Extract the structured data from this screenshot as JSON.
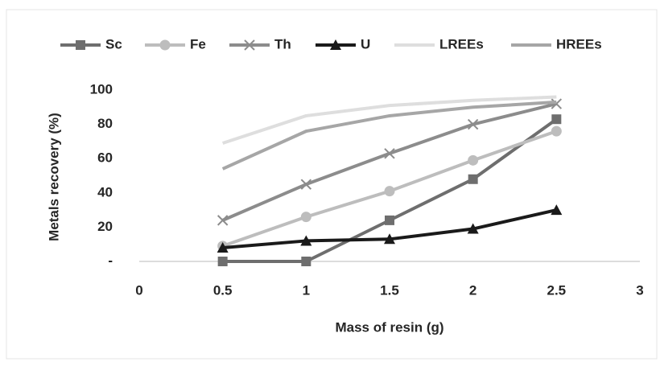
{
  "chart_data": {
    "type": "line",
    "x_label": "Mass of resin (g)",
    "y_label": "Metals recovery (%)",
    "xlim": [
      0,
      3
    ],
    "xticks": [
      0,
      0.5,
      1,
      1.5,
      2,
      2.5,
      3
    ],
    "ylim": [
      0,
      100
    ],
    "yticks": [
      {
        "value": 0,
        "label": "-"
      },
      20,
      40,
      60,
      80,
      100
    ],
    "legend": "top",
    "grid": false,
    "x": [
      0.5,
      1,
      1.5,
      2,
      2.5
    ],
    "series": [
      {
        "name": "Sc",
        "color": "#6e6e6e",
        "marker": "square",
        "values": [
          0,
          0,
          24,
          48,
          83
        ]
      },
      {
        "name": "Fe",
        "color": "#bdbdbd",
        "marker": "circle",
        "values": [
          9,
          26,
          41,
          59,
          76
        ]
      },
      {
        "name": "Th",
        "color": "#8c8c8c",
        "marker": "cross",
        "values": [
          24,
          45,
          63,
          80,
          92
        ]
      },
      {
        "name": "U",
        "color": "#1a1a1a",
        "marker": "triangle",
        "values": [
          8,
          12,
          13,
          19,
          30
        ]
      },
      {
        "name": "LREEs",
        "color": "#dedede",
        "marker": "none",
        "values": [
          69,
          85,
          91,
          94,
          96
        ]
      },
      {
        "name": "HREEs",
        "color": "#a6a6a6",
        "marker": "none",
        "values": [
          54,
          76,
          85,
          90,
          93
        ]
      }
    ]
  }
}
